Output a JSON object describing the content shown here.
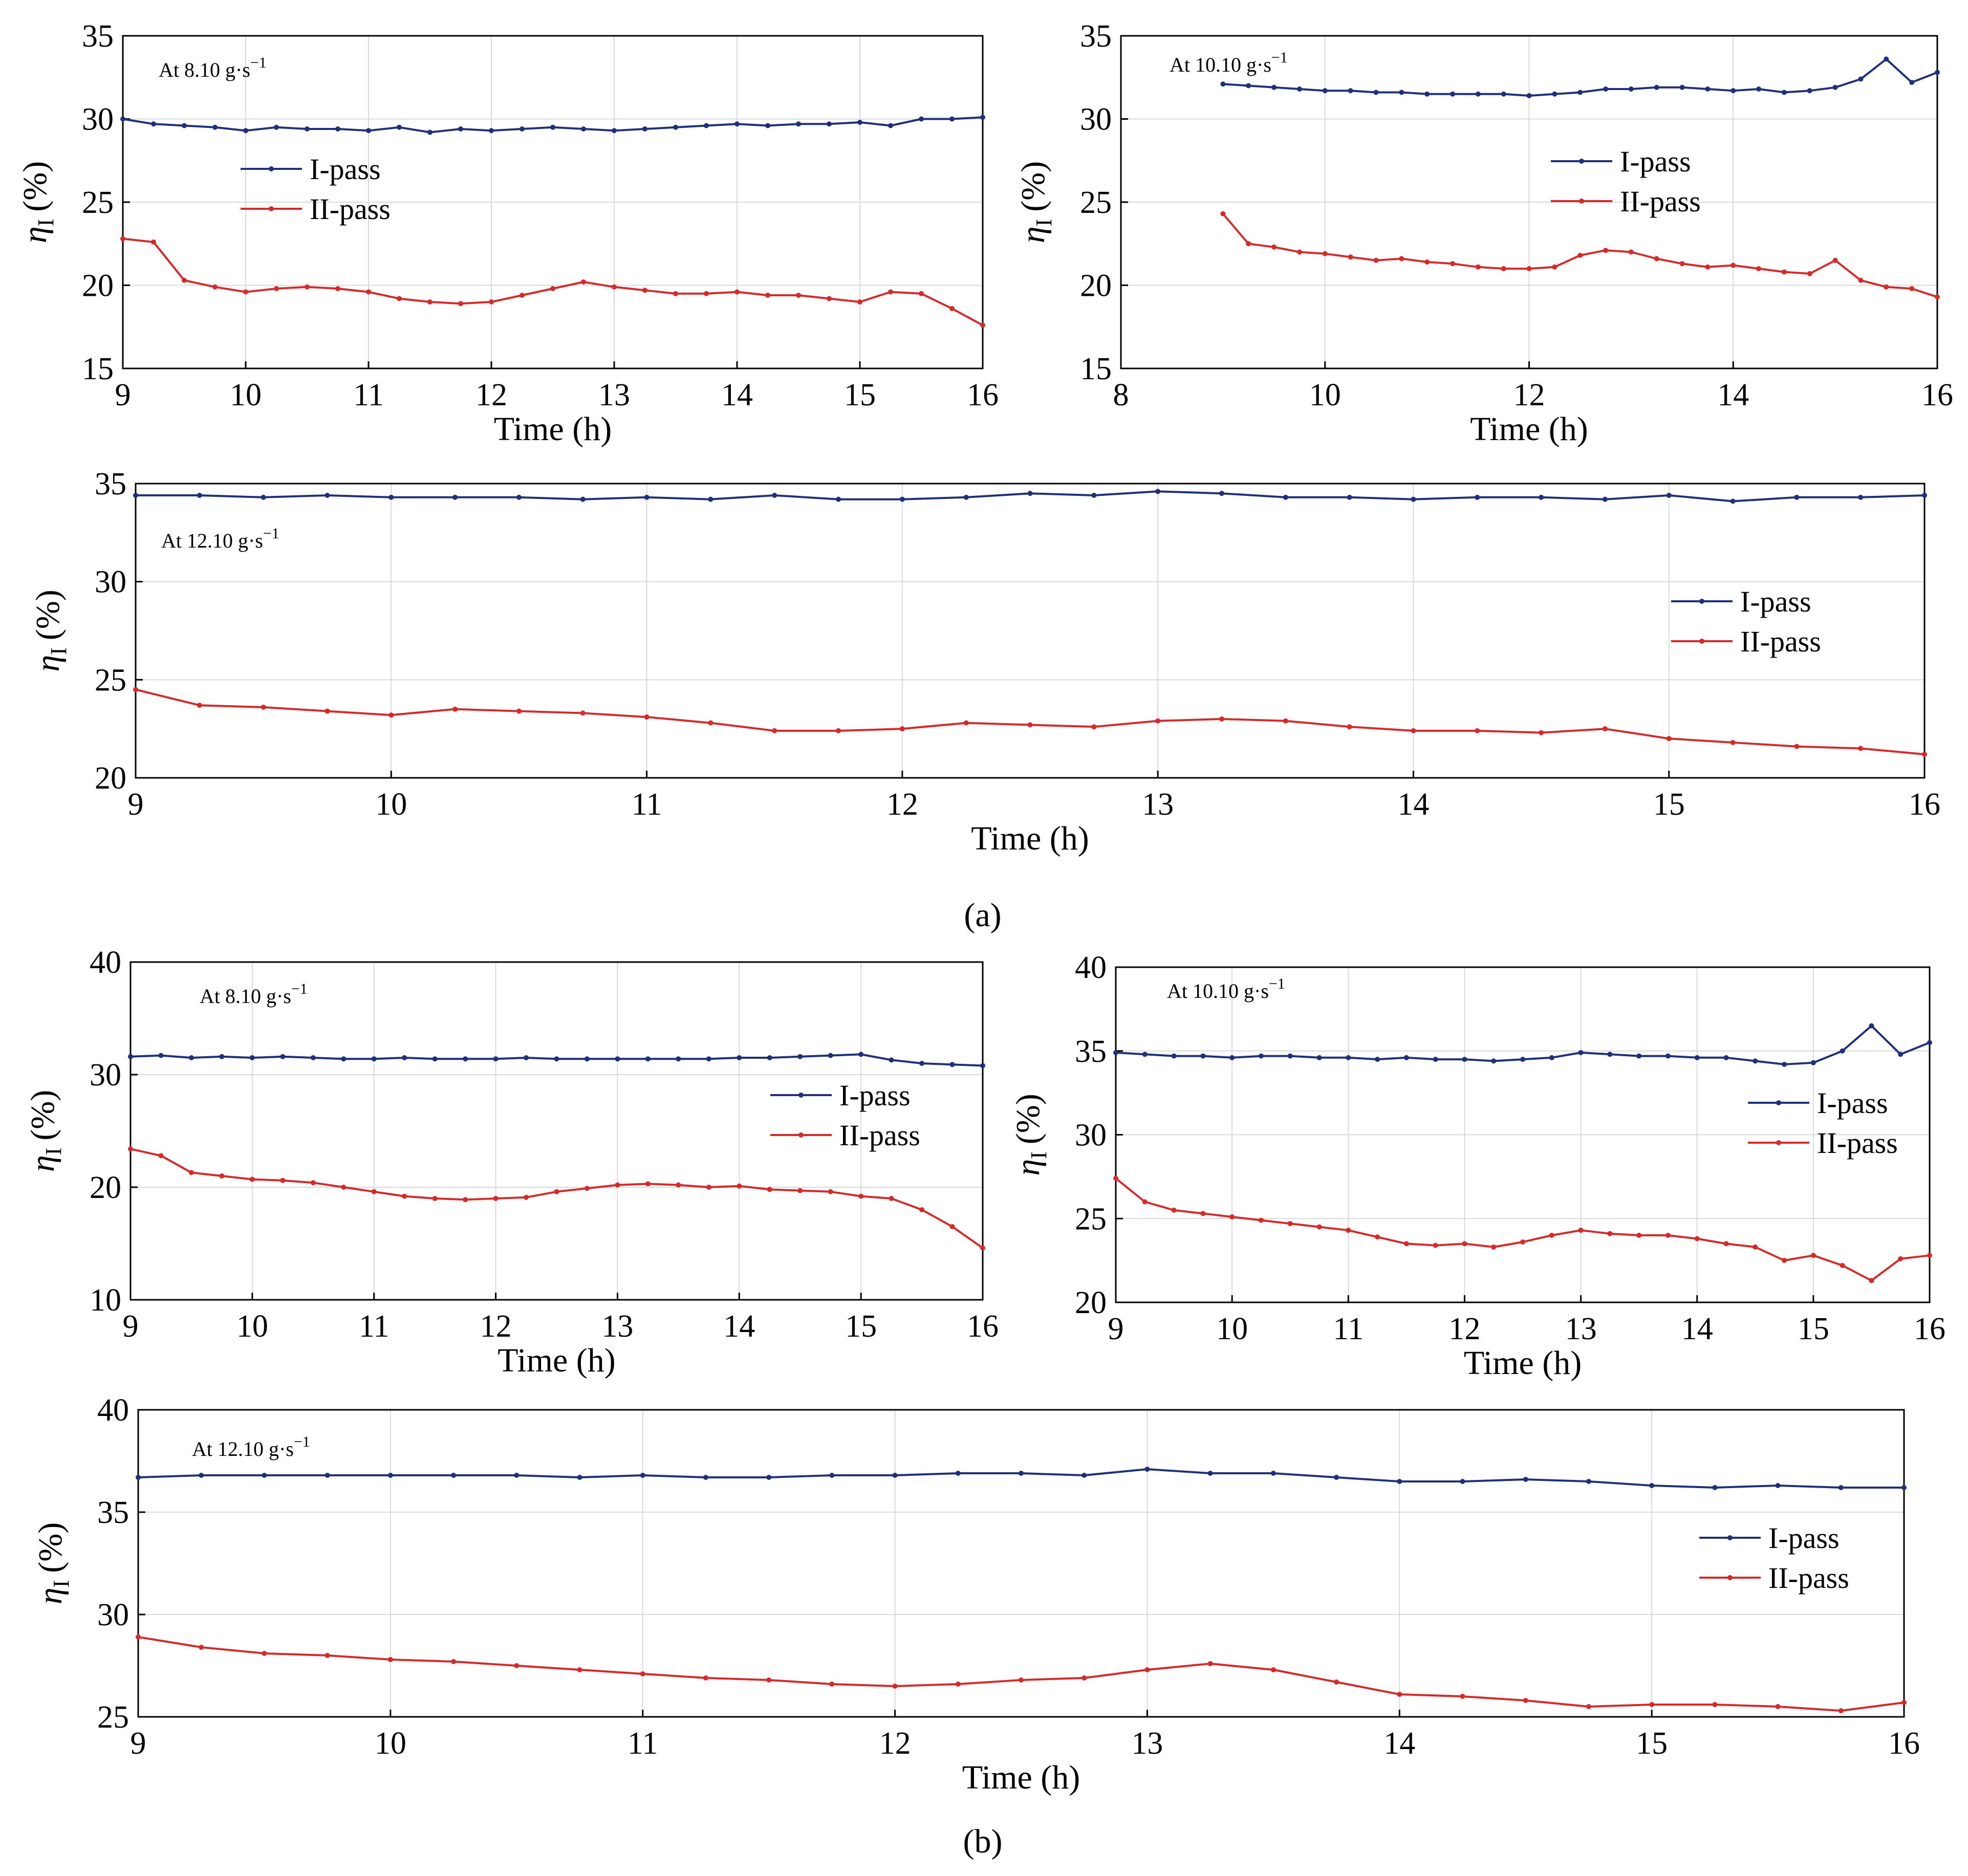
{
  "panel_labels": {
    "a": "(a)",
    "b": "(b)"
  },
  "chart_data": [
    {
      "type": "line",
      "panel": "a",
      "id": "a1",
      "annotation": "At 8.10 g·s",
      "annotation_sup": "−1",
      "xlabel": "Time (h)",
      "ylabel": "η",
      "ylabel_sub": "I",
      "ylabel_unit": "(%)",
      "xlim": [
        9,
        16
      ],
      "ylim": [
        15,
        35
      ],
      "xticks": [
        9,
        10,
        11,
        12,
        13,
        14,
        15,
        16
      ],
      "yticks": [
        15,
        20,
        25,
        30,
        35
      ],
      "xtick_labels": [
        "9",
        "10",
        "11",
        "12",
        "13",
        "14",
        "15",
        "16"
      ],
      "ytick_labels": [
        "15",
        "20",
        "25",
        "30",
        "35"
      ],
      "legend": [
        "I-pass",
        "II-pass"
      ],
      "legend_position": "upper-left",
      "grid": true,
      "x": [
        9,
        9.25,
        9.5,
        9.75,
        10,
        10.25,
        10.5,
        10.75,
        11,
        11.25,
        11.5,
        11.75,
        12,
        12.25,
        12.5,
        12.75,
        13,
        13.25,
        13.5,
        13.75,
        14,
        14.25,
        14.5,
        14.75,
        15,
        15.25,
        15.5,
        15.75,
        16
      ],
      "series": [
        {
          "name": "I-pass",
          "color": "#1f2f7a",
          "values": [
            30.0,
            29.7,
            29.6,
            29.5,
            29.3,
            29.5,
            29.4,
            29.4,
            29.3,
            29.5,
            29.2,
            29.4,
            29.3,
            29.4,
            29.5,
            29.4,
            29.3,
            29.4,
            29.5,
            29.6,
            29.7,
            29.6,
            29.7,
            29.7,
            29.8,
            29.6,
            30.0,
            30.0,
            30.1
          ]
        },
        {
          "name": "II-pass",
          "color": "#d42a2a",
          "values": [
            22.8,
            22.6,
            20.3,
            19.9,
            19.6,
            19.8,
            19.9,
            19.8,
            19.6,
            19.2,
            19.0,
            18.9,
            19.0,
            19.4,
            19.8,
            20.2,
            19.9,
            19.7,
            19.5,
            19.5,
            19.6,
            19.4,
            19.4,
            19.2,
            19.0,
            19.6,
            19.5,
            18.6,
            17.6
          ]
        }
      ]
    },
    {
      "type": "line",
      "panel": "a",
      "id": "a2",
      "annotation": "At 10.10 g·s",
      "annotation_sup": "−1",
      "xlabel": "Time (h)",
      "ylabel": "η",
      "ylabel_sub": "I",
      "ylabel_unit": "(%)",
      "xlim": [
        8,
        16
      ],
      "ylim": [
        15,
        35
      ],
      "xticks": [
        8,
        10,
        12,
        14,
        16
      ],
      "yticks": [
        15,
        20,
        25,
        30,
        35
      ],
      "xtick_labels": [
        "8",
        "10",
        "12",
        "14",
        "16"
      ],
      "ytick_labels": [
        "15",
        "20",
        "25",
        "30",
        "35"
      ],
      "legend": [
        "I-pass",
        "II-pass"
      ],
      "legend_position": "center-right",
      "grid": true,
      "x": [
        9,
        9.25,
        9.5,
        9.75,
        10,
        10.25,
        10.5,
        10.75,
        11,
        11.25,
        11.5,
        11.75,
        12,
        12.25,
        12.5,
        12.75,
        13,
        13.25,
        13.5,
        13.75,
        14,
        14.25,
        14.5,
        14.75,
        15,
        15.25,
        15.5,
        15.75,
        16
      ],
      "series": [
        {
          "name": "I-pass",
          "color": "#1f2f7a",
          "values": [
            32.1,
            32.0,
            31.9,
            31.8,
            31.7,
            31.7,
            31.6,
            31.6,
            31.5,
            31.5,
            31.5,
            31.5,
            31.4,
            31.5,
            31.6,
            31.8,
            31.8,
            31.9,
            31.9,
            31.8,
            31.7,
            31.8,
            31.6,
            31.7,
            31.9,
            32.4,
            33.6,
            32.2,
            32.8
          ]
        },
        {
          "name": "II-pass",
          "color": "#d42a2a",
          "values": [
            24.3,
            22.5,
            22.3,
            22.0,
            21.9,
            21.7,
            21.5,
            21.6,
            21.4,
            21.3,
            21.1,
            21.0,
            21.0,
            21.1,
            21.8,
            22.1,
            22.0,
            21.6,
            21.3,
            21.1,
            21.2,
            21.0,
            20.8,
            20.7,
            21.5,
            20.3,
            19.9,
            19.8,
            19.3
          ]
        }
      ]
    },
    {
      "type": "line",
      "panel": "a",
      "id": "a3",
      "annotation": "At 12.10 g·s",
      "annotation_sup": "−1",
      "xlabel": "Time (h)",
      "ylabel": "η",
      "ylabel_sub": "I",
      "ylabel_unit": "(%)",
      "xlim": [
        9,
        16
      ],
      "ylim": [
        20,
        35
      ],
      "xticks": [
        9,
        10,
        11,
        12,
        13,
        14,
        15,
        16
      ],
      "yticks": [
        20,
        25,
        30,
        35
      ],
      "xtick_labels": [
        "9",
        "10",
        "11",
        "12",
        "13",
        "14",
        "15",
        "16"
      ],
      "ytick_labels": [
        "20",
        "25",
        "30",
        "35"
      ],
      "legend": [
        "I-pass",
        "II-pass"
      ],
      "legend_position": "center-right",
      "grid": true,
      "x": [
        9,
        9.25,
        9.5,
        9.75,
        10,
        10.25,
        10.5,
        10.75,
        11,
        11.25,
        11.5,
        11.75,
        12,
        12.25,
        12.5,
        12.75,
        13,
        13.25,
        13.5,
        13.75,
        14,
        14.25,
        14.5,
        14.75,
        15,
        15.25,
        15.5,
        15.75,
        16
      ],
      "series": [
        {
          "name": "I-pass",
          "color": "#1f2f7a",
          "values": [
            34.4,
            34.4,
            34.3,
            34.4,
            34.3,
            34.3,
            34.3,
            34.2,
            34.3,
            34.2,
            34.4,
            34.2,
            34.2,
            34.3,
            34.5,
            34.4,
            34.6,
            34.5,
            34.3,
            34.3,
            34.2,
            34.3,
            34.3,
            34.2,
            34.4,
            34.1,
            34.3,
            34.3,
            34.4
          ]
        },
        {
          "name": "II-pass",
          "color": "#d42a2a",
          "values": [
            24.5,
            23.7,
            23.6,
            23.4,
            23.2,
            23.5,
            23.4,
            23.3,
            23.1,
            22.8,
            22.4,
            22.4,
            22.5,
            22.8,
            22.7,
            22.6,
            22.9,
            23.0,
            22.9,
            22.6,
            22.4,
            22.4,
            22.3,
            22.5,
            22.0,
            21.8,
            21.6,
            21.5,
            21.2
          ]
        }
      ]
    },
    {
      "type": "line",
      "panel": "b",
      "id": "b1",
      "annotation": "At 8.10 g·s",
      "annotation_sup": "−1",
      "xlabel": "Time (h)",
      "ylabel": "η",
      "ylabel_sub": "I",
      "ylabel_unit": "(%)",
      "xlim": [
        9,
        16
      ],
      "ylim": [
        10,
        40
      ],
      "xticks": [
        9,
        10,
        11,
        12,
        13,
        14,
        15,
        16
      ],
      "yticks": [
        10,
        20,
        30,
        40
      ],
      "xtick_labels": [
        "9",
        "10",
        "11",
        "12",
        "13",
        "14",
        "15",
        "16"
      ],
      "ytick_labels": [
        "10",
        "20",
        "30",
        "40"
      ],
      "legend": [
        "I-pass",
        "II-pass"
      ],
      "legend_position": "center-right",
      "grid": true,
      "x": [
        9,
        9.25,
        9.5,
        9.75,
        10,
        10.25,
        10.5,
        10.75,
        11,
        11.25,
        11.5,
        11.75,
        12,
        12.25,
        12.5,
        12.75,
        13,
        13.25,
        13.5,
        13.75,
        14,
        14.25,
        14.5,
        14.75,
        15,
        15.25,
        15.5,
        15.75,
        16
      ],
      "series": [
        {
          "name": "I-pass",
          "color": "#1f2f7a",
          "values": [
            31.6,
            31.7,
            31.5,
            31.6,
            31.5,
            31.6,
            31.5,
            31.4,
            31.4,
            31.5,
            31.4,
            31.4,
            31.4,
            31.5,
            31.4,
            31.4,
            31.4,
            31.4,
            31.4,
            31.4,
            31.5,
            31.5,
            31.6,
            31.7,
            31.8,
            31.3,
            31.0,
            30.9,
            30.8
          ]
        },
        {
          "name": "II-pass",
          "color": "#d42a2a",
          "values": [
            23.4,
            22.8,
            21.3,
            21.0,
            20.7,
            20.6,
            20.4,
            20.0,
            19.6,
            19.2,
            19.0,
            18.9,
            19.0,
            19.1,
            19.6,
            19.9,
            20.2,
            20.3,
            20.2,
            20.0,
            20.1,
            19.8,
            19.7,
            19.6,
            19.2,
            19.0,
            18.0,
            16.5,
            14.6
          ]
        }
      ]
    },
    {
      "type": "line",
      "panel": "b",
      "id": "b2",
      "annotation": "At 10.10 g·s",
      "annotation_sup": "−1",
      "xlabel": "Time (h)",
      "ylabel": "η",
      "ylabel_sub": "I",
      "ylabel_unit": "(%)",
      "xlim": [
        9,
        16
      ],
      "ylim": [
        20,
        40
      ],
      "xticks": [
        9,
        10,
        11,
        12,
        13,
        14,
        15,
        16
      ],
      "yticks": [
        20,
        25,
        30,
        35,
        40
      ],
      "xtick_labels": [
        "9",
        "10",
        "11",
        "12",
        "13",
        "14",
        "15",
        "16"
      ],
      "ytick_labels": [
        "20",
        "25",
        "30",
        "35",
        "40"
      ],
      "legend": [
        "I-pass",
        "II-pass"
      ],
      "legend_position": "center-right",
      "grid": true,
      "x": [
        9,
        9.25,
        9.5,
        9.75,
        10,
        10.25,
        10.5,
        10.75,
        11,
        11.25,
        11.5,
        11.75,
        12,
        12.25,
        12.5,
        12.75,
        13,
        13.25,
        13.5,
        13.75,
        14,
        14.25,
        14.5,
        14.75,
        15,
        15.25,
        15.5,
        15.75,
        16
      ],
      "series": [
        {
          "name": "I-pass",
          "color": "#1f2f7a",
          "values": [
            34.9,
            34.8,
            34.7,
            34.7,
            34.6,
            34.7,
            34.7,
            34.6,
            34.6,
            34.5,
            34.6,
            34.5,
            34.5,
            34.4,
            34.5,
            34.6,
            34.9,
            34.8,
            34.7,
            34.7,
            34.6,
            34.6,
            34.4,
            34.2,
            34.3,
            35.0,
            36.5,
            34.8,
            35.5
          ]
        },
        {
          "name": "II-pass",
          "color": "#d42a2a",
          "values": [
            27.4,
            26.0,
            25.5,
            25.3,
            25.1,
            24.9,
            24.7,
            24.5,
            24.3,
            23.9,
            23.5,
            23.4,
            23.5,
            23.3,
            23.6,
            24.0,
            24.3,
            24.1,
            24.0,
            24.0,
            23.8,
            23.5,
            23.3,
            22.5,
            22.8,
            22.2,
            21.3,
            22.6,
            22.8
          ]
        }
      ]
    },
    {
      "type": "line",
      "panel": "b",
      "id": "b3",
      "annotation": "At 12.10 g·s",
      "annotation_sup": "−1",
      "xlabel": "Time (h)",
      "ylabel": "η",
      "ylabel_sub": "I",
      "ylabel_unit": "(%)",
      "xlim": [
        9,
        16
      ],
      "ylim": [
        25,
        40
      ],
      "xticks": [
        9,
        10,
        11,
        12,
        13,
        14,
        15,
        16
      ],
      "yticks": [
        25,
        30,
        35,
        40
      ],
      "xtick_labels": [
        "9",
        "10",
        "11",
        "12",
        "13",
        "14",
        "15",
        "16"
      ],
      "ytick_labels": [
        "25",
        "30",
        "35",
        "40"
      ],
      "legend": [
        "I-pass",
        "II-pass"
      ],
      "legend_position": "center-right",
      "grid": true,
      "x": [
        9,
        9.25,
        9.5,
        9.75,
        10,
        10.25,
        10.5,
        10.75,
        11,
        11.25,
        11.5,
        11.75,
        12,
        12.25,
        12.5,
        12.75,
        13,
        13.25,
        13.5,
        13.75,
        14,
        14.25,
        14.5,
        14.75,
        15,
        15.25,
        15.5,
        15.75,
        16
      ],
      "series": [
        {
          "name": "I-pass",
          "color": "#1f2f7a",
          "values": [
            36.7,
            36.8,
            36.8,
            36.8,
            36.8,
            36.8,
            36.8,
            36.7,
            36.8,
            36.7,
            36.7,
            36.8,
            36.8,
            36.9,
            36.9,
            36.8,
            37.1,
            36.9,
            36.9,
            36.7,
            36.5,
            36.5,
            36.6,
            36.5,
            36.3,
            36.2,
            36.3,
            36.2,
            36.2
          ]
        },
        {
          "name": "II-pass",
          "color": "#d42a2a",
          "values": [
            28.9,
            28.4,
            28.1,
            28.0,
            27.8,
            27.7,
            27.5,
            27.3,
            27.1,
            26.9,
            26.8,
            26.6,
            26.5,
            26.6,
            26.8,
            26.9,
            27.3,
            27.6,
            27.3,
            26.7,
            26.1,
            26.0,
            25.8,
            25.5,
            25.6,
            25.6,
            25.5,
            25.3,
            25.7
          ]
        }
      ]
    }
  ]
}
